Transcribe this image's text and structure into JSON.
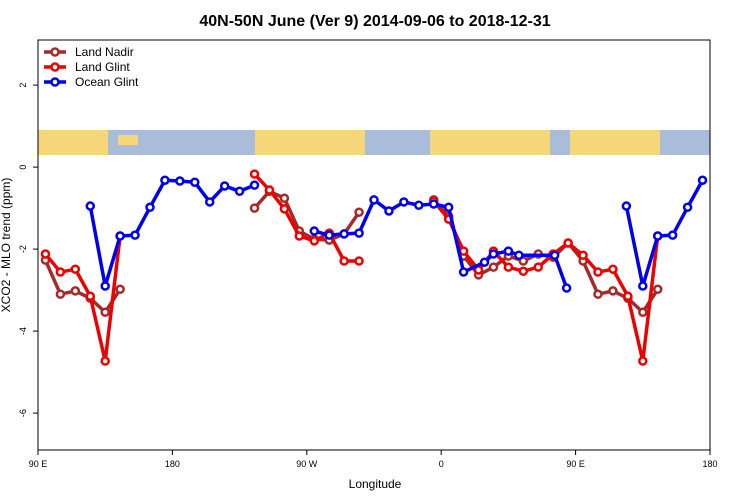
{
  "chart_data": {
    "type": "line",
    "title": "40N-50N June (Ver 9)   2014-09-06 to 2018-12-31",
    "x_label": "Longitude",
    "y_label": "XCO2 - MLO trend (ppm)",
    "xlim": [
      90,
      540
    ],
    "ylim": [
      -6.9,
      3.1
    ],
    "xticks": [
      {
        "value": 90,
        "label": "90 E"
      },
      180,
      {
        "value": 270,
        "label": "90 W"
      },
      {
        "value": 360,
        "label": "0"
      },
      {
        "value": 450,
        "label": "90 E"
      },
      {
        "value": 540,
        "label": "180"
      }
    ],
    "yticks": [
      2,
      0,
      -2,
      -4,
      -6
    ],
    "legend": "top-left",
    "series": [
      {
        "name": "Land Nadir",
        "color": "#a52a2a",
        "x": [
          95,
          105,
          115,
          125,
          135,
          145,
          190,
          235,
          245,
          255,
          265,
          275,
          285,
          295,
          305,
          330,
          355,
          365,
          375,
          385,
          395,
          405,
          415,
          425,
          435,
          445,
          455,
          465,
          475,
          485,
          495,
          505
        ],
        "values": [
          -2.27,
          -3.1,
          -3.02,
          -3.2,
          -3.54,
          -2.98,
          null,
          -1.0,
          -0.59,
          -0.76,
          -1.56,
          -1.76,
          -1.78,
          -1.63,
          -1.1,
          null,
          -0.8,
          -1.2,
          -2.17,
          -2.63,
          -2.44,
          -2.17,
          -2.29,
          -2.12,
          -2.2,
          -1.85,
          -2.29,
          -3.1,
          -3.02,
          -3.2,
          -3.54,
          -2.98
        ]
      },
      {
        "name": "Land Glint",
        "color": "#ee0000",
        "x": [
          95,
          105,
          115,
          125,
          135,
          145,
          190,
          235,
          245,
          255,
          265,
          275,
          285,
          295,
          305,
          330,
          355,
          365,
          375,
          385,
          395,
          405,
          415,
          425,
          435,
          445,
          455,
          465,
          475,
          485,
          495,
          505
        ],
        "values": [
          -2.12,
          -2.56,
          -2.49,
          -3.15,
          -4.73,
          -1.68,
          null,
          -0.17,
          -0.56,
          -1.02,
          -1.68,
          -1.8,
          -1.61,
          -2.29,
          -2.29,
          null,
          -0.83,
          -1.27,
          -2.05,
          -2.51,
          -2.05,
          -2.44,
          -2.54,
          -2.44,
          -2.12,
          -1.85,
          -2.15,
          -2.56,
          -2.49,
          -3.15,
          -4.73,
          -1.68
        ]
      },
      {
        "name": "Ocean Glint",
        "color": "#0000ee",
        "x": [
          125,
          135,
          145,
          155,
          165,
          175,
          185,
          195,
          205,
          215,
          225,
          235,
          255,
          275,
          285,
          295,
          305,
          315,
          325,
          335,
          345,
          355,
          365,
          375,
          389,
          395,
          405,
          412,
          436,
          444,
          465,
          484,
          495,
          505,
          515,
          525,
          535
        ],
        "values": [
          -0.95,
          -2.9,
          -1.68,
          -1.66,
          -0.98,
          -0.32,
          -0.34,
          -0.37,
          -0.85,
          -0.46,
          -0.59,
          -0.44,
          null,
          -1.56,
          -1.66,
          -1.63,
          -1.61,
          -0.8,
          -1.07,
          -0.85,
          -0.93,
          -0.9,
          -0.98,
          -2.56,
          -2.32,
          -2.12,
          -2.05,
          -2.15,
          -2.15,
          -2.95,
          null,
          -0.95,
          -2.9,
          -1.68,
          -1.66,
          -0.98,
          -0.32
        ]
      }
    ]
  }
}
